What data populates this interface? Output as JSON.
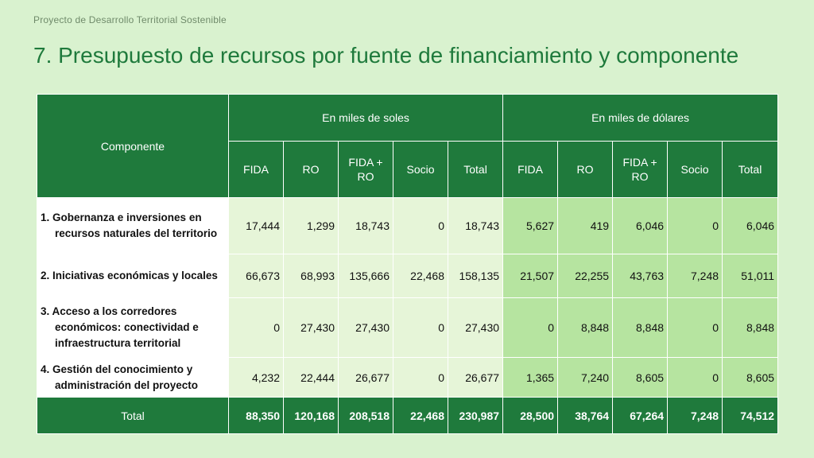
{
  "header": {
    "project": "Proyecto de Desarrollo Territorial Sostenible",
    "title": "7. Presupuesto de recursos  por fuente de financiamiento y componente"
  },
  "table": {
    "component_header": "Componente",
    "group_soles": "En miles de soles",
    "group_dolares": "En miles de dólares",
    "sub_headers": [
      "FIDA",
      "RO",
      "FIDA + RO",
      "Socio",
      "Total",
      "FIDA",
      "RO",
      "FIDA + RO",
      "Socio",
      "Total"
    ],
    "rows": [
      {
        "label": "1. Gobernanza e inversiones en recursos naturales del territorio",
        "values": [
          "17,444",
          "1,299",
          "18,743",
          "0",
          "18,743",
          "5,627",
          "419",
          "6,046",
          "0",
          "6,046"
        ]
      },
      {
        "label": "2. Iniciativas económicas y locales",
        "values": [
          "66,673",
          "68,993",
          "135,666",
          "22,468",
          "158,135",
          "21,507",
          "22,255",
          "43,763",
          "7,248",
          "51,011"
        ]
      },
      {
        "label": "3. Acceso a los corredores económicos: conectividad e infraestructura territorial",
        "values": [
          "0",
          "27,430",
          "27,430",
          "0",
          "27,430",
          "0",
          "8,848",
          "8,848",
          "0",
          "8,848"
        ]
      },
      {
        "label": "4. Gestión del conocimiento y administración del proyecto",
        "values": [
          "4,232",
          "22,444",
          "26,677",
          "0",
          "26,677",
          "1,365",
          "7,240",
          "8,605",
          "0",
          "8,605"
        ]
      }
    ],
    "total": {
      "label": "Total",
      "values": [
        "88,350",
        "120,168",
        "208,518",
        "22,468",
        "230,987",
        "28,500",
        "38,764",
        "67,264",
        "7,248",
        "74,512"
      ]
    }
  },
  "colors": {
    "background": "#d9f2cf",
    "header_green": "#1f7a3c",
    "soles_cell": "#e6f5d8",
    "dolares_cell": "#b6e4a0"
  }
}
